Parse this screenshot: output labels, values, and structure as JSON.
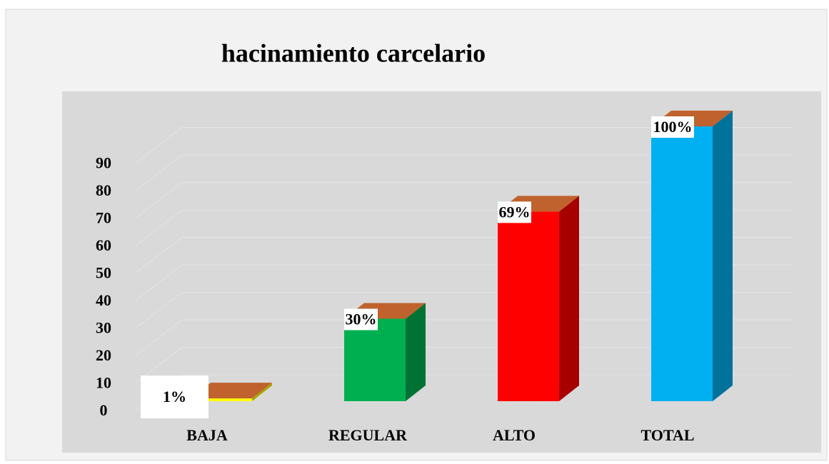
{
  "chart_data": {
    "type": "bar3d",
    "title": "hacinamiento carcelario",
    "categories": [
      "BAJA",
      "REGULAR",
      "ALTO",
      "TOTAL"
    ],
    "values": [
      1,
      30,
      69,
      100
    ],
    "value_labels": [
      "1%",
      "30%",
      "69%",
      "100%"
    ],
    "colors": [
      "#ffff00",
      "#00b050",
      "#ff0000",
      "#00b0f0"
    ],
    "top_color": "#c0622d",
    "ylim": [
      0,
      100
    ],
    "yticks": [
      0,
      10,
      20,
      30,
      40,
      50,
      60,
      70,
      80,
      90
    ],
    "grid": true
  }
}
